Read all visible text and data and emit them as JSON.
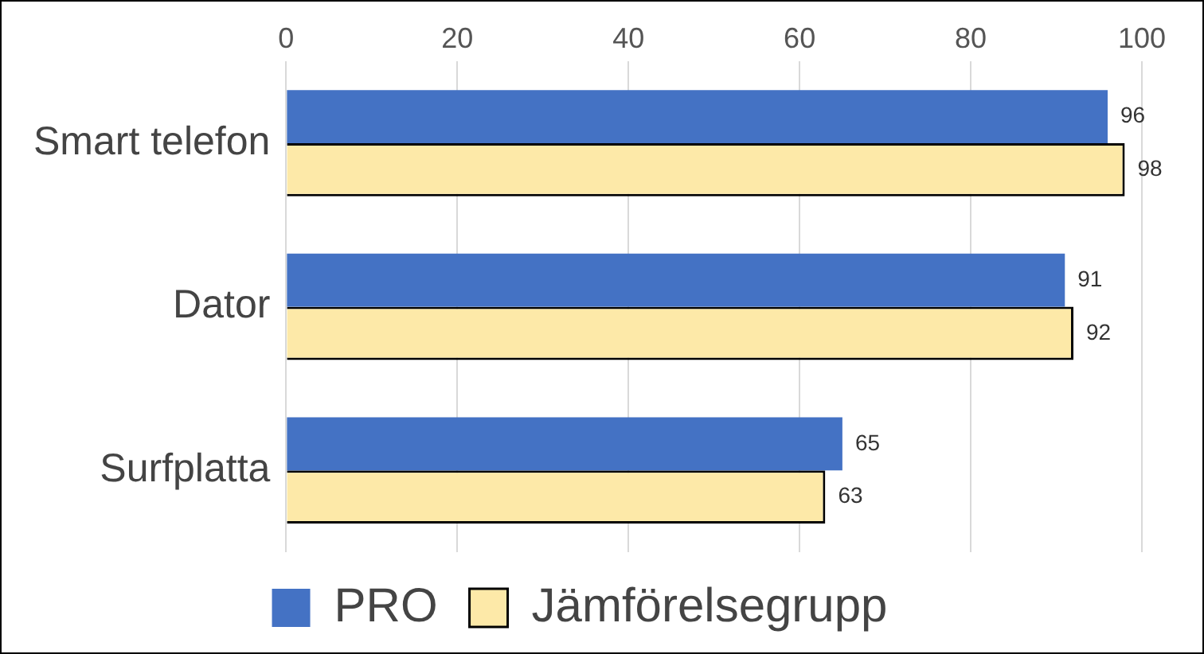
{
  "chart_data": {
    "type": "bar",
    "orientation": "horizontal",
    "categories": [
      "Smart telefon",
      "Dator",
      "Surfplatta"
    ],
    "series": [
      {
        "name": "PRO",
        "color": "#4472c4",
        "values": [
          96,
          91,
          65
        ]
      },
      {
        "name": "Jämförelsegrupp",
        "color": "#fde9a8",
        "values": [
          98,
          92,
          63
        ]
      }
    ],
    "xlim": [
      0,
      100
    ],
    "xticks": [
      0,
      20,
      40,
      60,
      80,
      100
    ],
    "grid": "x",
    "legend": "bottom",
    "data_labels": true
  }
}
